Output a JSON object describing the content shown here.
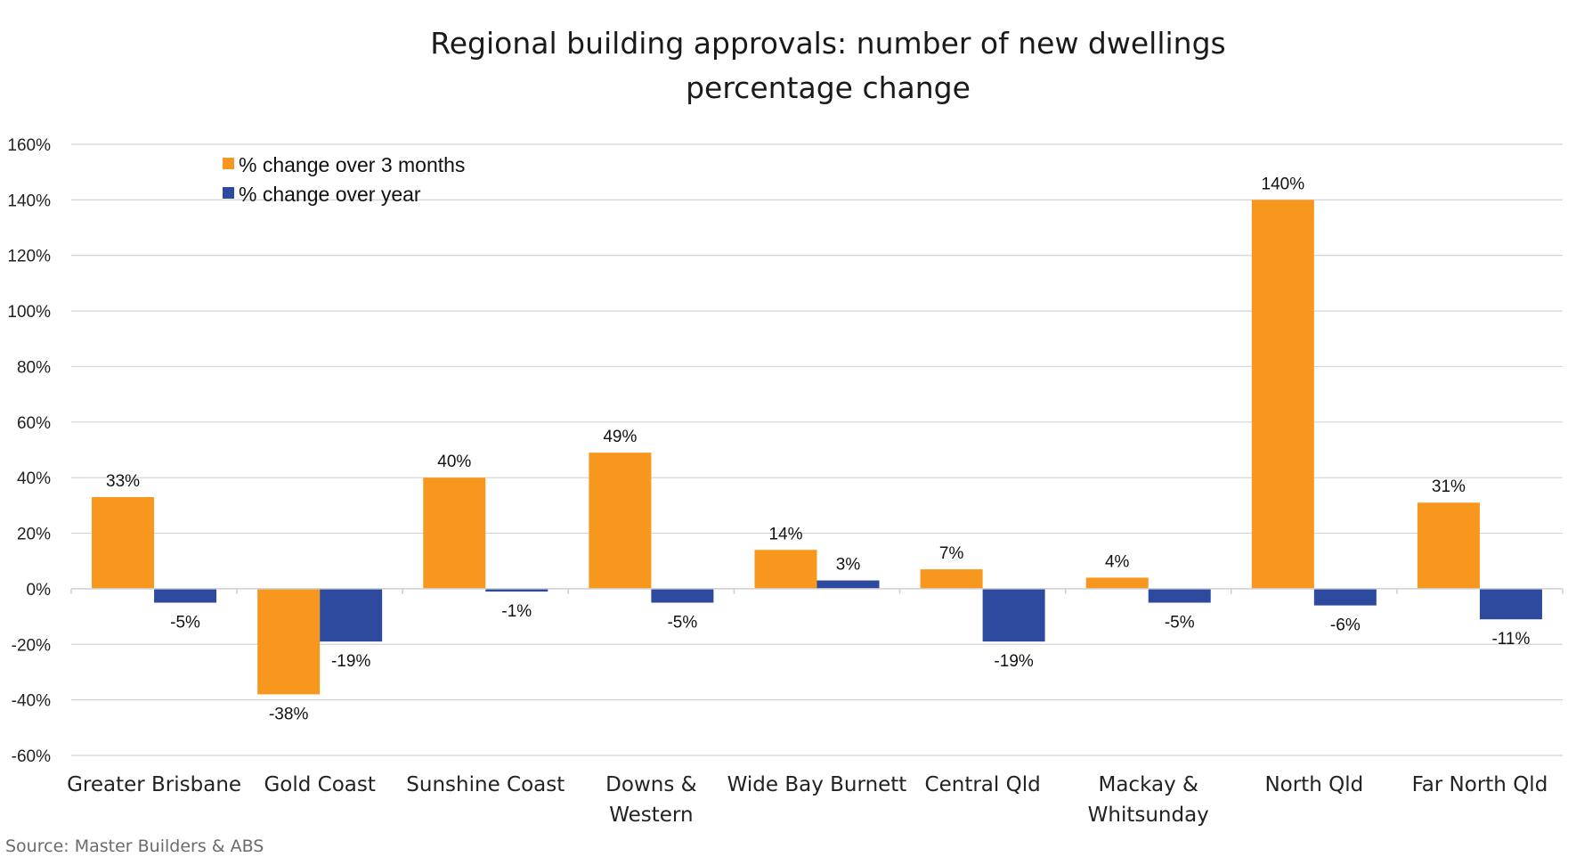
{
  "chart_data": {
    "type": "bar",
    "title_lines": [
      "Regional building approvals: number of new dwellings",
      "percentage change"
    ],
    "categories": [
      [
        "Greater Brisbane"
      ],
      [
        "Gold Coast"
      ],
      [
        "Sunshine Coast"
      ],
      [
        "Downs &",
        "Western"
      ],
      [
        "Wide Bay Burnett"
      ],
      [
        "Central Qld"
      ],
      [
        "Mackay &",
        "Whitsunday"
      ],
      [
        "North Qld"
      ],
      [
        "Far North Qld"
      ]
    ],
    "series": [
      {
        "name": "% change over 3 months",
        "color": "#f7971e",
        "values": [
          33,
          -38,
          40,
          49,
          14,
          7,
          4,
          140,
          31
        ],
        "labels": [
          "33%",
          "-38%",
          "40%",
          "49%",
          "14%",
          "7%",
          "4%",
          "140%",
          "31%"
        ]
      },
      {
        "name": "% change over year",
        "color": "#2e4a9e",
        "values": [
          -5,
          -19,
          -1,
          -5,
          3,
          -19,
          -5,
          -6,
          -11
        ],
        "labels": [
          "-5%",
          "-19%",
          "-1%",
          "-5%",
          "3%",
          "-19%",
          "-5%",
          "-6%",
          "-11%"
        ]
      }
    ],
    "ylim": [
      -60,
      160
    ],
    "yticks": [
      -60,
      -40,
      -20,
      0,
      20,
      40,
      60,
      80,
      100,
      120,
      140,
      160
    ],
    "ytick_labels": [
      "-60%",
      "-40%",
      "-20%",
      "0%",
      "20%",
      "40%",
      "60%",
      "80%",
      "100%",
      "120%",
      "140%",
      "160%"
    ],
    "grid": true,
    "legend_position": "top-left",
    "xlabel": "",
    "ylabel": ""
  },
  "source": "Source:  Master Builders & ABS"
}
